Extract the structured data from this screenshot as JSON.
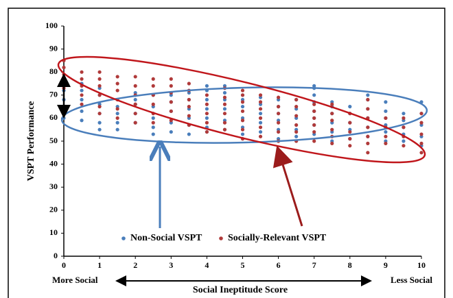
{
  "chart_data": {
    "type": "scatter",
    "ylabel": "VSPT Performance",
    "xlabel": "Social Ineptitude Score",
    "x_left_label": "More Social",
    "x_right_label": "Less Social",
    "xlim": [
      0,
      10
    ],
    "xticks": [
      0,
      1,
      2,
      3,
      4,
      5,
      6,
      7,
      8,
      9,
      10
    ],
    "ylim": [
      0,
      100
    ],
    "yticks": [
      0,
      10,
      20,
      30,
      40,
      50,
      60,
      70,
      80,
      90,
      100
    ],
    "legend": "lower center",
    "series": [
      {
        "name": "Non-Social VSPT",
        "color": "#4a7ebb",
        "x": [
          0,
          0,
          0,
          0,
          0,
          0.5,
          0.5,
          0.5,
          0.5,
          0.5,
          1,
          1,
          1,
          1,
          1,
          1,
          1.5,
          1.5,
          1.5,
          1.5,
          2,
          2,
          2,
          2,
          2,
          2.5,
          2.5,
          2.5,
          2.5,
          2.5,
          3,
          3,
          3,
          3,
          3,
          3.5,
          3.5,
          3.5,
          3.5,
          3.5,
          3.5,
          4,
          4,
          4,
          4,
          4,
          4,
          4,
          4.5,
          4.5,
          4.5,
          4.5,
          4.5,
          4.5,
          5,
          5,
          5,
          5,
          5,
          5,
          5.5,
          5.5,
          5.5,
          5.5,
          5.5,
          6,
          6,
          6,
          6,
          6,
          6,
          6.5,
          6.5,
          6.5,
          6.5,
          6.5,
          7,
          7,
          7,
          7,
          7,
          7,
          7,
          7,
          7.5,
          7.5,
          7.5,
          7.5,
          7.5,
          7.5,
          8,
          8,
          8,
          8,
          8,
          8.5,
          8.5,
          8.5,
          8.5,
          8.5,
          8.5,
          9,
          9,
          9,
          9,
          9,
          9,
          9.5,
          9.5,
          9.5,
          9.5,
          9.5,
          10,
          10,
          10,
          10,
          10
        ],
        "values": [
          60,
          62,
          65,
          68,
          72,
          59,
          63,
          68,
          72,
          75,
          55,
          58,
          62,
          66,
          70,
          73,
          55,
          58,
          62,
          65,
          58,
          62,
          66,
          68,
          71,
          53,
          56,
          60,
          65,
          70,
          54,
          58,
          63,
          67,
          70,
          53,
          57,
          60,
          64,
          68,
          71,
          54,
          56,
          60,
          64,
          68,
          72,
          74,
          55,
          59,
          64,
          68,
          71,
          74,
          53,
          56,
          60,
          65,
          68,
          70,
          54,
          58,
          62,
          66,
          69,
          51,
          55,
          59,
          62,
          65,
          68,
          52,
          55,
          60,
          64,
          68,
          53,
          57,
          60,
          63,
          67,
          70,
          73,
          74,
          50,
          54,
          58,
          62,
          65,
          67,
          51,
          55,
          58,
          62,
          65,
          52,
          56,
          60,
          64,
          68,
          70,
          50,
          54,
          57,
          60,
          63,
          67,
          50,
          53,
          56,
          59,
          62,
          48,
          52,
          57,
          62,
          67
        ]
      },
      {
        "name": "Socially-Relevant VSPT",
        "color": "#b03a3a",
        "x": [
          0,
          0,
          0,
          0,
          0,
          0.5,
          0.5,
          0.5,
          0.5,
          0.5,
          1,
          1,
          1,
          1,
          1,
          1,
          1.5,
          1.5,
          1.5,
          1.5,
          1.5,
          1.5,
          2,
          2,
          2,
          2,
          2,
          2,
          2.5,
          2.5,
          2.5,
          2.5,
          2.5,
          2.5,
          3,
          3,
          3,
          3,
          3,
          3,
          3.5,
          3.5,
          3.5,
          3.5,
          3.5,
          3.5,
          4,
          4,
          4,
          4,
          4,
          4.5,
          4.5,
          4.5,
          4.5,
          4.5,
          4.5,
          5,
          5,
          5,
          5,
          5,
          5,
          5,
          5.5,
          5.5,
          5.5,
          5.5,
          5.5,
          5.5,
          6,
          6,
          6,
          6,
          6,
          6,
          6.5,
          6.5,
          6.5,
          6.5,
          6.5,
          6.5,
          7,
          7,
          7,
          7,
          7,
          7,
          7.5,
          7.5,
          7.5,
          7.5,
          7.5,
          7.5,
          8,
          8,
          8,
          8,
          8,
          8.5,
          8.5,
          8.5,
          8.5,
          8.5,
          8.5,
          8.5,
          9,
          9,
          9,
          9,
          9.5,
          9.5,
          9.5,
          9.5,
          10,
          10,
          10,
          10,
          10
        ],
        "values": [
          73,
          76,
          79,
          82,
          85,
          66,
          70,
          74,
          77,
          80,
          62,
          65,
          70,
          74,
          77,
          80,
          60,
          64,
          68,
          72,
          75,
          78,
          58,
          62,
          66,
          70,
          74,
          78,
          58,
          62,
          66,
          70,
          74,
          77,
          59,
          63,
          67,
          71,
          74,
          77,
          57,
          61,
          65,
          68,
          72,
          75,
          54,
          58,
          62,
          66,
          70,
          55,
          58,
          62,
          66,
          69,
          73,
          51,
          55,
          59,
          63,
          67,
          70,
          72,
          52,
          56,
          60,
          64,
          67,
          70,
          50,
          54,
          58,
          62,
          65,
          69,
          50,
          54,
          57,
          61,
          65,
          68,
          50,
          54,
          57,
          60,
          63,
          66,
          49,
          52,
          55,
          59,
          62,
          66,
          48,
          51,
          54,
          58,
          62,
          45,
          49,
          52,
          56,
          60,
          64,
          68,
          49,
          52,
          56,
          60,
          48,
          52,
          56,
          60,
          45,
          49,
          53,
          58,
          62
        ]
      }
    ]
  }
}
